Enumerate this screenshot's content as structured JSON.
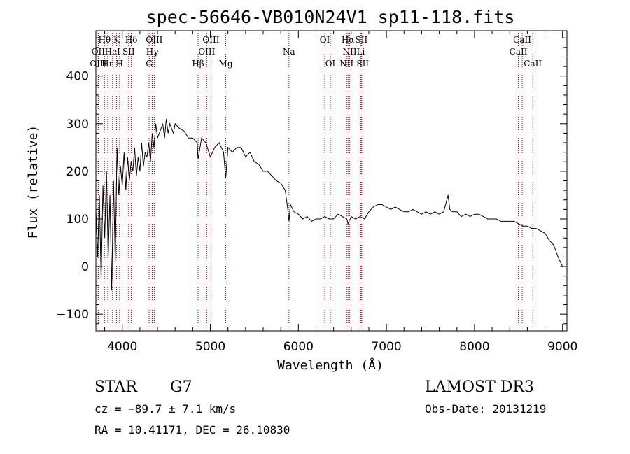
{
  "chart_data": {
    "type": "line",
    "title": "spec-56646-VB010N24V1_sp11-118.fits",
    "xlabel": "Wavelength (Å)",
    "ylabel": "Flux (relative)",
    "xlim": [
      3700,
      9050
    ],
    "ylim": [
      -135,
      495
    ],
    "xticks": [
      4000,
      5000,
      6000,
      7000,
      8000,
      9000
    ],
    "yticks": [
      -100,
      0,
      100,
      200,
      300,
      400
    ],
    "series": [
      {
        "name": "flux",
        "x": [
          3700,
          3720,
          3740,
          3760,
          3780,
          3800,
          3820,
          3840,
          3860,
          3880,
          3900,
          3920,
          3940,
          3960,
          3980,
          4000,
          4020,
          4040,
          4060,
          4080,
          4100,
          4120,
          4140,
          4160,
          4180,
          4200,
          4220,
          4240,
          4260,
          4280,
          4300,
          4320,
          4340,
          4360,
          4380,
          4400,
          4420,
          4440,
          4460,
          4480,
          4500,
          4520,
          4540,
          4560,
          4580,
          4600,
          4650,
          4700,
          4750,
          4800,
          4850,
          4861,
          4900,
          4950,
          5000,
          5050,
          5100,
          5150,
          5175,
          5200,
          5250,
          5300,
          5350,
          5400,
          5450,
          5500,
          5550,
          5600,
          5650,
          5700,
          5750,
          5800,
          5850,
          5880,
          5893,
          5910,
          5950,
          6000,
          6050,
          6100,
          6150,
          6200,
          6250,
          6300,
          6350,
          6400,
          6450,
          6500,
          6550,
          6563,
          6600,
          6650,
          6700,
          6750,
          6800,
          6850,
          6900,
          6950,
          7000,
          7050,
          7100,
          7150,
          7200,
          7250,
          7300,
          7350,
          7400,
          7450,
          7500,
          7550,
          7600,
          7650,
          7700,
          7720,
          7750,
          7800,
          7850,
          7900,
          7950,
          8000,
          8050,
          8100,
          8150,
          8200,
          8250,
          8300,
          8350,
          8400,
          8450,
          8500,
          8550,
          8600,
          8650,
          8700,
          8750,
          8800,
          8850,
          8900,
          8950,
          9000
        ],
        "y": [
          120,
          20,
          150,
          -30,
          170,
          60,
          200,
          20,
          150,
          -50,
          180,
          10,
          250,
          150,
          210,
          170,
          240,
          160,
          230,
          180,
          220,
          200,
          250,
          190,
          230,
          200,
          260,
          210,
          240,
          230,
          260,
          220,
          280,
          250,
          300,
          270,
          280,
          290,
          300,
          270,
          310,
          280,
          300,
          290,
          280,
          300,
          290,
          285,
          270,
          270,
          260,
          225,
          270,
          260,
          230,
          250,
          260,
          240,
          185,
          250,
          240,
          250,
          250,
          230,
          240,
          220,
          215,
          200,
          200,
          190,
          180,
          175,
          160,
          120,
          95,
          130,
          115,
          110,
          100,
          105,
          95,
          100,
          100,
          105,
          100,
          100,
          110,
          105,
          100,
          90,
          105,
          100,
          105,
          100,
          115,
          125,
          130,
          130,
          125,
          120,
          125,
          120,
          115,
          115,
          120,
          115,
          110,
          115,
          110,
          115,
          110,
          115,
          150,
          120,
          115,
          115,
          105,
          110,
          105,
          110,
          110,
          105,
          100,
          100,
          100,
          95,
          95,
          95,
          95,
          90,
          85,
          85,
          80,
          80,
          75,
          70,
          55,
          45,
          20,
          0
        ]
      }
    ],
    "spectral_lines": [
      {
        "name": "Hθ",
        "wavelength": 3798,
        "row": 0
      },
      {
        "name": "OII",
        "wavelength": 3727,
        "row": 1
      },
      {
        "name": "OIII",
        "wavelength": 3727,
        "row": 2
      },
      {
        "name": "K",
        "wavelength": 3934,
        "row": 0
      },
      {
        "name": "HeI",
        "wavelength": 3889,
        "row": 1
      },
      {
        "name": "Hη",
        "wavelength": 3835,
        "row": 2
      },
      {
        "name": "Hδ",
        "wavelength": 4102,
        "row": 0
      },
      {
        "name": "SII",
        "wavelength": 4072,
        "row": 1
      },
      {
        "name": "H",
        "wavelength": 3969,
        "row": 2
      },
      {
        "name": "OIII",
        "wavelength": 4363,
        "row": 0
      },
      {
        "name": "Hγ",
        "wavelength": 4340,
        "row": 1
      },
      {
        "name": "G",
        "wavelength": 4305,
        "row": 2
      },
      {
        "name": "Hβ",
        "wavelength": 4861,
        "row": 2
      },
      {
        "name": "OIII",
        "wavelength": 5007,
        "row": 0
      },
      {
        "name": "OIII",
        "wavelength": 4959,
        "row": 1
      },
      {
        "name": "Mg",
        "wavelength": 5175,
        "row": 2
      },
      {
        "name": "Na",
        "wavelength": 5893,
        "row": 1
      },
      {
        "name": "OI",
        "wavelength": 6300,
        "row": 0
      },
      {
        "name": "OI",
        "wavelength": 6363,
        "row": 2
      },
      {
        "name": "Hα",
        "wavelength": 6563,
        "row": 0
      },
      {
        "name": "SII",
        "wavelength": 6716,
        "row": 0
      },
      {
        "name": "NII",
        "wavelength": 6583,
        "row": 1
      },
      {
        "name": "Li",
        "wavelength": 6708,
        "row": 1
      },
      {
        "name": "NII",
        "wavelength": 6548,
        "row": 2
      },
      {
        "name": "SII",
        "wavelength": 6731,
        "row": 2
      },
      {
        "name": "CaII",
        "wavelength": 8542,
        "row": 0
      },
      {
        "name": "CaII",
        "wavelength": 8498,
        "row": 1
      },
      {
        "name": "CaII",
        "wavelength": 8662,
        "row": 2
      }
    ]
  },
  "info": {
    "class": "STAR",
    "subclass": "G7",
    "redshift": "cz = −89.7 ± 7.1 km/s",
    "coords": "RA =  10.41171, DEC =  26.10830",
    "survey": "LAMOST DR3",
    "obs_date": "Obs-Date: 20131219"
  },
  "colors": {
    "spectrum": "#000000",
    "line_markers": "#cc0000"
  }
}
